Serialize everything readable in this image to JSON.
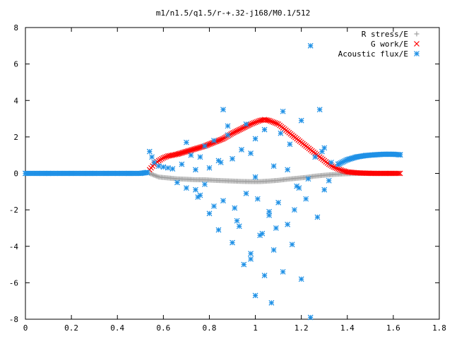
{
  "chart_data": {
    "type": "scatter",
    "title": "m1/n1.5/q1.5/r-+.32-j168/M0.1/512",
    "xlabel": "",
    "ylabel": "",
    "xlim": [
      0,
      1.8
    ],
    "ylim": [
      -8,
      8
    ],
    "x_ticks": [
      "0",
      "0.2",
      "0.4",
      "0.6",
      "0.8",
      "1",
      "1.2",
      "1.4",
      "1.6",
      "1.8"
    ],
    "y_ticks": [
      "8",
      "6",
      "4",
      "2",
      "0",
      "-2",
      "-4",
      "-6",
      "-8"
    ],
    "grid": false,
    "legend_position": "top-right",
    "series": [
      {
        "name": "R stress/E",
        "marker": "plus",
        "color": "#a0a0a0",
        "x": [
          0.54,
          0.58,
          0.62,
          0.66,
          0.7,
          0.74,
          0.78,
          0.82,
          0.86,
          0.9,
          0.94,
          0.98,
          1.02,
          1.06,
          1.1,
          1.14,
          1.18,
          1.22,
          1.26,
          1.3,
          1.34,
          1.38,
          1.42,
          1.46,
          1.5,
          1.54,
          1.58,
          1.62
        ],
        "y": [
          0,
          -0.2,
          -0.25,
          -0.3,
          -0.32,
          -0.35,
          -0.35,
          -0.38,
          -0.4,
          -0.42,
          -0.44,
          -0.45,
          -0.45,
          -0.42,
          -0.38,
          -0.32,
          -0.27,
          -0.22,
          -0.15,
          -0.1,
          -0.06,
          -0.03,
          -0.01,
          0,
          0,
          0,
          0,
          0
        ]
      },
      {
        "name": "G work/E",
        "marker": "cross",
        "color": "#ff0000",
        "x": [
          0.54,
          0.56,
          0.58,
          0.6,
          0.62,
          0.64,
          0.66,
          0.7,
          0.74,
          0.78,
          0.82,
          0.86,
          0.9,
          0.94,
          0.98,
          1.0,
          1.02,
          1.04,
          1.06,
          1.08,
          1.1,
          1.12,
          1.14,
          1.16,
          1.18,
          1.2,
          1.22,
          1.24,
          1.26,
          1.28,
          1.3,
          1.32,
          1.34,
          1.36,
          1.38,
          1.4,
          1.44,
          1.48,
          1.52,
          1.56,
          1.6,
          1.63
        ],
        "y": [
          0.2,
          0.5,
          0.7,
          0.85,
          0.95,
          1.0,
          1.05,
          1.2,
          1.35,
          1.5,
          1.7,
          1.9,
          2.2,
          2.45,
          2.7,
          2.8,
          2.9,
          2.95,
          2.9,
          2.8,
          2.7,
          2.5,
          2.3,
          2.1,
          1.9,
          1.7,
          1.5,
          1.3,
          1.1,
          0.9,
          0.7,
          0.5,
          0.35,
          0.25,
          0.15,
          0.08,
          0.03,
          0.01,
          0,
          0,
          0,
          0
        ]
      },
      {
        "name": "Acoustic flux/E",
        "marker": "star",
        "color": "#1e90e6",
        "x": [
          0.0,
          0.05,
          0.1,
          0.15,
          0.2,
          0.25,
          0.3,
          0.35,
          0.4,
          0.45,
          0.5,
          0.53,
          0.54,
          0.55,
          0.56,
          0.58,
          0.6,
          0.62,
          0.64,
          1.36,
          1.4,
          1.44,
          1.48,
          1.52,
          1.56,
          1.6,
          1.63,
          0.66,
          0.68,
          0.7,
          0.72,
          0.74,
          0.75,
          0.76,
          0.78,
          0.78,
          0.8,
          0.8,
          0.82,
          0.84,
          0.85,
          0.86,
          0.86,
          0.88,
          0.9,
          0.9,
          0.92,
          0.94,
          0.95,
          0.96,
          0.96,
          0.98,
          1.0,
          1.0,
          1.0,
          1.02,
          1.04,
          1.04,
          1.06,
          1.07,
          1.08,
          1.08,
          1.1,
          1.12,
          1.12,
          1.14,
          1.15,
          1.16,
          1.18,
          1.2,
          1.2,
          1.22,
          1.24,
          1.24,
          1.26,
          1.27,
          1.28,
          1.3,
          1.3,
          1.32,
          1.33,
          0.7,
          0.74,
          0.82,
          0.88,
          0.93,
          0.98,
          1.03,
          1.11,
          1.17,
          1.23,
          1.29,
          0.76,
          0.84,
          0.91,
          1.01,
          1.09,
          1.19,
          0.98,
          1.06,
          1.14
        ],
        "y": [
          0,
          0,
          0,
          0,
          0,
          0,
          0,
          0,
          0,
          0,
          0,
          0.05,
          1.2,
          0.9,
          0.6,
          0.4,
          0.35,
          0.3,
          0.25,
          0.5,
          0.75,
          0.9,
          0.98,
          1.02,
          1.05,
          1.05,
          1.02,
          -0.5,
          0.5,
          -0.8,
          1.0,
          0.2,
          -1.3,
          0.9,
          -0.6,
          1.5,
          -2.2,
          0.3,
          1.8,
          -3.1,
          0.6,
          3.5,
          -1.5,
          2.1,
          -3.8,
          0.8,
          -2.6,
          1.3,
          -5.0,
          2.7,
          -1.1,
          -4.7,
          -6.7,
          -0.2,
          1.9,
          -3.4,
          2.4,
          -5.6,
          -2.1,
          -7.1,
          0.4,
          -4.2,
          -1.6,
          -5.4,
          3.4,
          -2.8,
          1.6,
          -3.9,
          -0.7,
          -5.8,
          2.9,
          -1.4,
          7.0,
          -7.9,
          0.9,
          -2.4,
          3.5,
          -0.9,
          1.4,
          -0.4,
          0.6,
          1.7,
          -0.9,
          -1.8,
          2.6,
          -2.9,
          1.1,
          -3.3,
          2.2,
          -2.0,
          -0.3,
          1.2,
          -1.2,
          0.7,
          -1.9,
          -1.4,
          -3.0,
          -0.8,
          -4.4,
          -2.3,
          0.2
        ]
      }
    ]
  }
}
